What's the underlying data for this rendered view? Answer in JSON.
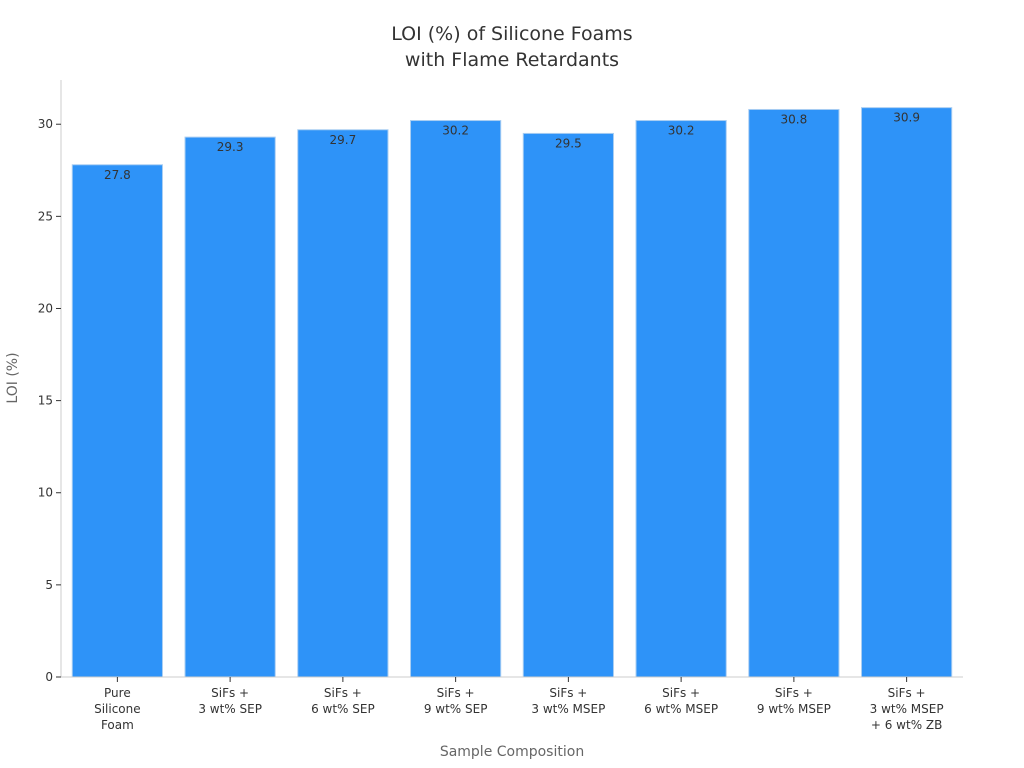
{
  "chart_data": {
    "type": "bar",
    "title": [
      "LOI (%) of Silicone Foams",
      "with Flame Retardants"
    ],
    "xlabel": "Sample Composition",
    "ylabel": "LOI (%)",
    "ylim": [
      0,
      32.4
    ],
    "yticks": [
      0,
      5,
      10,
      15,
      20,
      25,
      30
    ],
    "grid": false,
    "categories": [
      [
        "Pure",
        "Silicone",
        "Foam"
      ],
      [
        "SiFs +",
        "3 wt% SEP"
      ],
      [
        "SiFs +",
        "6 wt% SEP"
      ],
      [
        "SiFs +",
        "9 wt% SEP"
      ],
      [
        "SiFs +",
        "3 wt% MSEP"
      ],
      [
        "SiFs +",
        "6 wt% MSEP"
      ],
      [
        "SiFs +",
        "9 wt% MSEP"
      ],
      [
        "SiFs +",
        "3 wt% MSEP",
        "+ 6 wt% ZB"
      ]
    ],
    "values": [
      27.8,
      29.3,
      29.7,
      30.2,
      29.5,
      30.2,
      30.8,
      30.9
    ],
    "data_labels": [
      "27.8",
      "29.3",
      "29.7",
      "30.2",
      "29.5",
      "30.2",
      "30.8",
      "30.9"
    ],
    "colors": {
      "bar": "#2e93f8",
      "bar_edge": "#a8cdf2",
      "axis": "#cccccc",
      "text": "#333333",
      "axis_title": "#666666"
    }
  }
}
